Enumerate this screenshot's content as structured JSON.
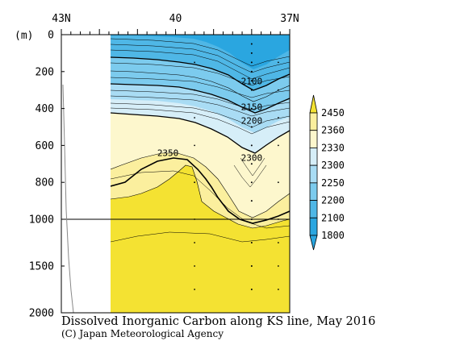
{
  "chart_data": {
    "type": "heatmap",
    "title": "Dissolved Inorganic Carbon along KS line, May 2016",
    "credit": "(C) Japan Meteorological Agency",
    "ylabel_unit": "(m)",
    "x_ticks": [
      {
        "value": 43,
        "label": "43N"
      },
      {
        "value": 40,
        "label": "40"
      },
      {
        "value": 37,
        "label": "37N"
      }
    ],
    "x_range": [
      43,
      37
    ],
    "y_ticks": [
      0,
      200,
      400,
      600,
      800,
      1000,
      1500,
      2000
    ],
    "y_range": [
      0,
      2000
    ],
    "y_axis_break": 1000,
    "colorbar": {
      "levels": [
        1800,
        2100,
        2200,
        2250,
        2300,
        2330,
        2360,
        2450
      ],
      "colors": [
        "#2aa6e0",
        "#4fb7e6",
        "#7ccbee",
        "#a9dcf4",
        "#d6eef8",
        "#fdf7cd",
        "#fbef9e",
        "#f4e232"
      ]
    },
    "contour_labels": [
      {
        "text": "2100",
        "lat": 38.0,
        "depth": 250
      },
      {
        "text": "2150",
        "lat": 38.0,
        "depth": 390
      },
      {
        "text": "2200",
        "lat": 38.0,
        "depth": 465
      },
      {
        "text": "2300",
        "lat": 38.0,
        "depth": 665
      },
      {
        "text": "2350",
        "lat": 40.2,
        "depth": 640
      }
    ],
    "grid": false
  }
}
